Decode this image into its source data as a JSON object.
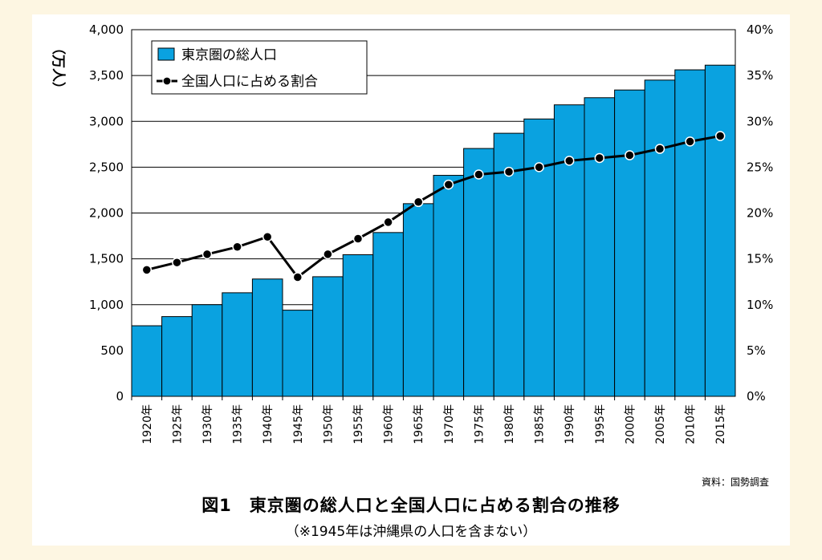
{
  "chart_data": {
    "type": "bar",
    "categories": [
      "1920年",
      "1925年",
      "1930年",
      "1935年",
      "1940年",
      "1945年",
      "1950年",
      "1955年",
      "1960年",
      "1965年",
      "1970年",
      "1975年",
      "1980年",
      "1985年",
      "1990年",
      "1995年",
      "2000年",
      "2005年",
      "2010年",
      "2015年"
    ],
    "series": [
      {
        "name": "東京圏の総人口",
        "type": "bar",
        "axis": "left",
        "color": "#0aa2e0",
        "values": [
          770,
          870,
          1000,
          1130,
          1280,
          940,
          1305,
          1545,
          1787,
          2102,
          2411,
          2704,
          2870,
          3026,
          3180,
          3258,
          3342,
          3450,
          3562,
          3613
        ]
      },
      {
        "name": "全国人口に占める割合",
        "type": "line",
        "axis": "right",
        "color": "#000000",
        "values": [
          13.8,
          14.6,
          15.5,
          16.3,
          17.4,
          13.0,
          15.5,
          17.2,
          19.0,
          21.2,
          23.1,
          24.2,
          24.5,
          25.0,
          25.7,
          26.0,
          26.3,
          27.0,
          27.8,
          28.4
        ]
      }
    ],
    "yleft": {
      "label": "（万人）",
      "min": 0,
      "max": 4000,
      "step": 500,
      "tick_labels": [
        "0",
        "500",
        "1,000",
        "1,500",
        "2,000",
        "2,500",
        "3,000",
        "3,500",
        "4,000"
      ]
    },
    "yright": {
      "min": 0,
      "max": 40,
      "step": 5,
      "tick_labels": [
        "0%",
        "5%",
        "10%",
        "15%",
        "20%",
        "25%",
        "30%",
        "35%",
        "40%"
      ]
    },
    "grid": "horizontal",
    "legend_position": "top-left"
  },
  "source": "資料：国勢調査",
  "title": "図1　東京圏の総人口と全国人口に占める割合の推移",
  "subtitle": "（※1945年は沖縄県の人口を含まない）",
  "colors": {
    "background": "#fdf6e2",
    "panel": "#ffffff",
    "bar": "#0aa2e0"
  }
}
